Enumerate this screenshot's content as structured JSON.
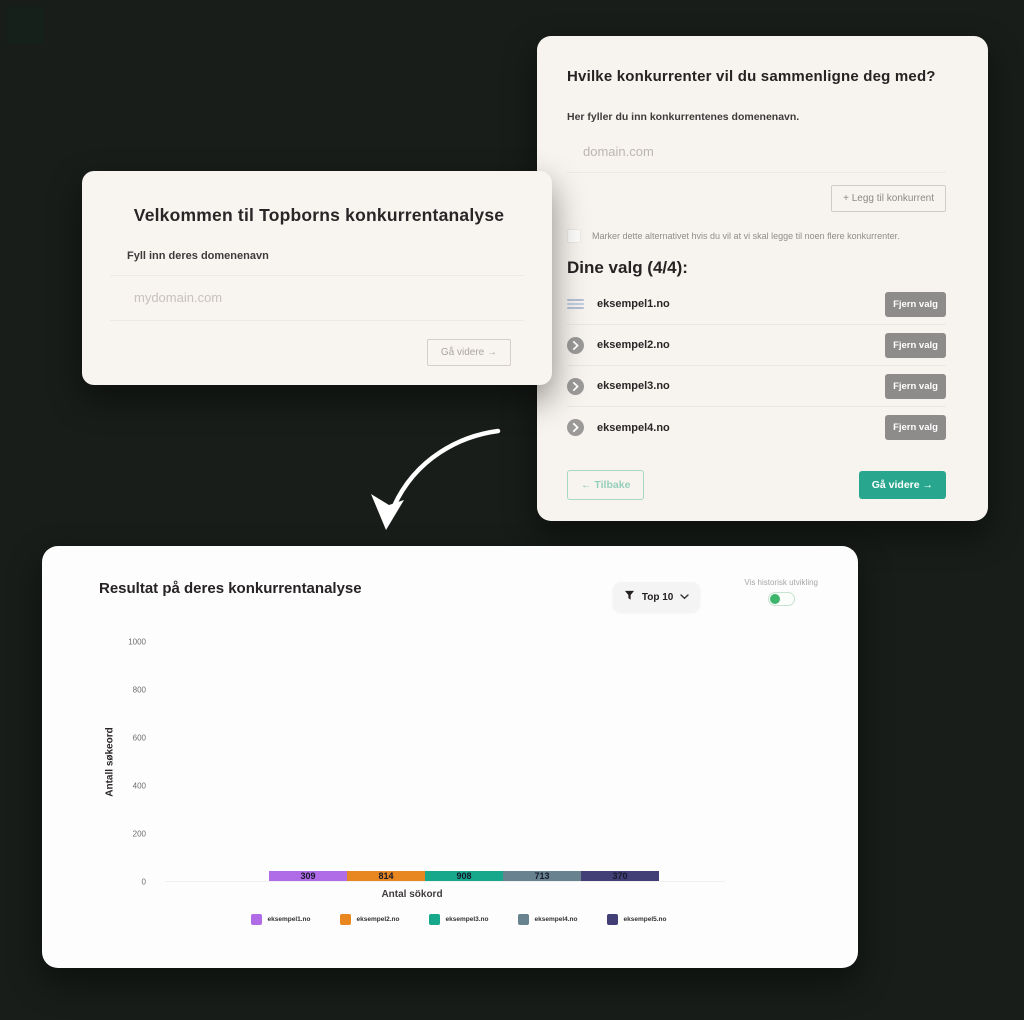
{
  "background_color": "#181d19",
  "welcome_card": {
    "title": "Velkommen til Topborns konkurrentanalyse",
    "field_label": "Fyll inn deres domenenavn",
    "input_placeholder": "mydomain.com",
    "input_value": "",
    "next_button_label": "Gå videre →"
  },
  "competitors_card": {
    "title": "Hvilke konkurrenter vil du sammenligne deg med?",
    "subtitle": "Her fyller du inn konkurrentenes domenenavn.",
    "input_placeholder": "domain.com",
    "input_value": "",
    "add_button_label": "+ Legg til konkurrent",
    "checkbox_label": "Marker dette alternativet hvis du vil at vi skal legge til noen flere konkurrenter.",
    "checkbox_checked": false,
    "selection_heading": "Dine valg (4/4):",
    "items": [
      {
        "name": "eksempel1.no",
        "icon": "list-icon",
        "remove_label": "Fjern valg"
      },
      {
        "name": "eksempel2.no",
        "icon": "arrow-circle-icon",
        "remove_label": "Fjern valg"
      },
      {
        "name": "eksempel3.no",
        "icon": "arrow-circle-icon",
        "remove_label": "Fjern valg"
      },
      {
        "name": "eksempel4.no",
        "icon": "arrow-circle-icon",
        "remove_label": "Fjern valg"
      }
    ],
    "back_button_label": "← Tilbake",
    "next_button_label": "Gå videre →"
  },
  "results_card": {
    "title": "Resultat på deres konkurrentanalyse",
    "filter_button_label": "Top 10",
    "filter_icon": "filter-funnel-icon",
    "toggle_label": "Vis historisk utvikling",
    "toggle_state": "on"
  },
  "chart_data": {
    "type": "bar",
    "title": "Resultat på deres konkurrentanalyse",
    "categories": [
      "eksempel1.no",
      "eksempel2.no",
      "eksempel3.no",
      "eksempel4.no",
      "eksempel5.no"
    ],
    "values": [
      309,
      814,
      908,
      713,
      370
    ],
    "bar_colors": [
      "#b06be6",
      "#e8861f",
      "#17a78a",
      "#68838f",
      "#413f75"
    ],
    "xlabel": "Antal sökord",
    "ylabel": "Antall søkeord",
    "ylim": [
      0,
      1000
    ],
    "yticks": [
      0,
      200,
      400,
      600,
      800,
      1000
    ],
    "grid": false,
    "legend_position": "bottom",
    "value_label_position": "inside-center"
  },
  "colors": {
    "accent_teal": "#29a78e",
    "remove_button_gray": "#8e8b8b",
    "toggle_green": "#3db56c",
    "card_ivory": "#f7f3ee",
    "card_white": "#fdfdfd",
    "background": "#181d19"
  }
}
